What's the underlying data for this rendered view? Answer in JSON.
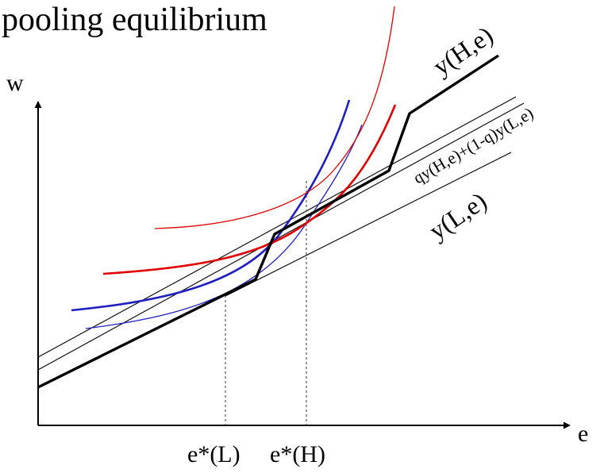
{
  "title": "pooling equilibrium",
  "axes": {
    "y_label": "w",
    "x_label": "e"
  },
  "curve_labels": {
    "high": "y(H,e)",
    "mix": "qy(H,e)+(1-q)y(L,e)",
    "low": "y(L,e)"
  },
  "ticks": {
    "e_low": "e*(L)",
    "e_high": "e*(H)"
  },
  "colors": {
    "axis": "#000000",
    "thin_lines": "#000000",
    "schedule": "#000000",
    "indifference_high": "#e00000",
    "indifference_low": "#2020c0",
    "guide_lines": "#555555"
  }
}
